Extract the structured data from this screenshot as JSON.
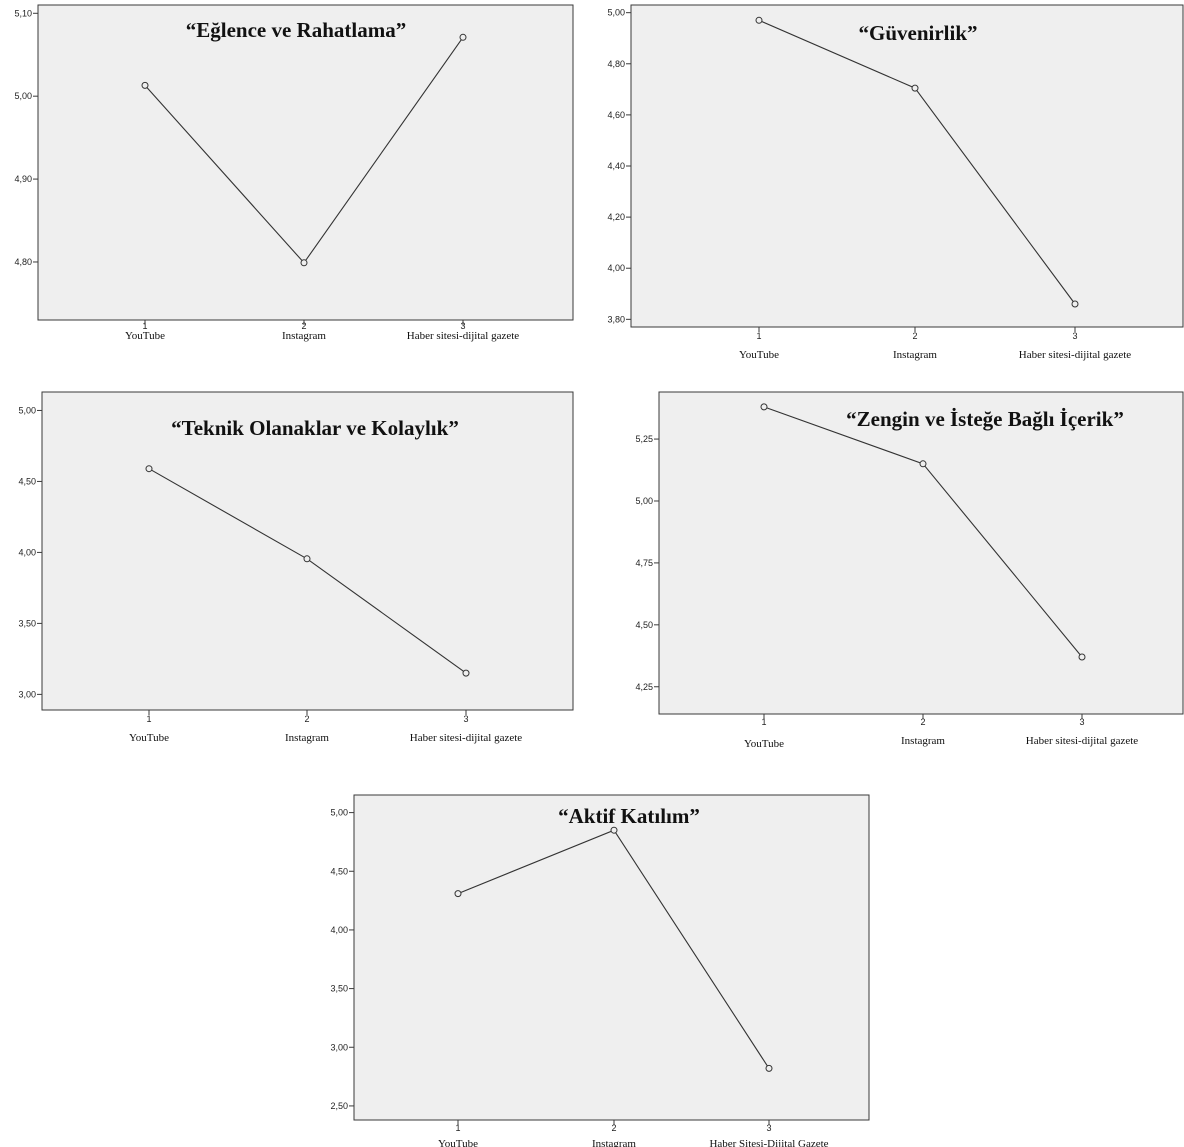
{
  "chart_data": [
    {
      "type": "line",
      "title": "“Eğlence ve Rahatlama”",
      "categories": [
        "YouTube",
        "Instagram",
        "Haber sitesi-dijital gazete"
      ],
      "x_ticks": [
        "1",
        "2",
        "3"
      ],
      "yticks": [
        "4,80",
        "4,90",
        "5,00",
        "5,10"
      ],
      "ylim": [
        4.73,
        5.11
      ],
      "values": [
        5.013,
        4.799,
        5.071
      ],
      "grid": false
    },
    {
      "type": "line",
      "title": "“Güvenirlik”",
      "categories": [
        "YouTube",
        "Instagram",
        "Haber sitesi-dijital gazete"
      ],
      "x_ticks": [
        "1",
        "2",
        "3"
      ],
      "yticks": [
        "3,80",
        "4,00",
        "4,20",
        "4,40",
        "4,60",
        "4,80",
        "5,00"
      ],
      "ylim": [
        3.77,
        5.03
      ],
      "values": [
        4.97,
        4.705,
        3.86
      ],
      "grid": false
    },
    {
      "type": "line",
      "title": "“Teknik Olanaklar ve Kolaylık”",
      "categories": [
        "YouTube",
        "Instagram",
        "Haber sitesi-dijital gazete"
      ],
      "x_ticks": [
        "1",
        "2",
        "3"
      ],
      "yticks": [
        "3,00",
        "3,50",
        "4,00",
        "4,50",
        "5,00"
      ],
      "ylim": [
        2.89,
        5.13
      ],
      "values": [
        4.59,
        3.955,
        3.15
      ],
      "grid": false
    },
    {
      "type": "line",
      "title": "“Zengin ve İsteğe Bağlı İçerik”",
      "categories": [
        "YouTube",
        "Instagram",
        "Haber sitesi-dijital gazete"
      ],
      "x_ticks": [
        "1",
        "2",
        "3"
      ],
      "yticks": [
        "4,25",
        "4,50",
        "4,75",
        "5,00",
        "5,25"
      ],
      "ylim": [
        4.14,
        5.44
      ],
      "values": [
        5.38,
        5.15,
        4.37
      ],
      "grid": false
    },
    {
      "type": "line",
      "title": "“Aktif Katılım”",
      "categories": [
        "YouTube",
        "Instagram",
        "Haber Sitesi-Dijital Gazete"
      ],
      "x_ticks": [
        "1",
        "2",
        "3"
      ],
      "yticks": [
        "2,50",
        "3,00",
        "3,50",
        "4,00",
        "4,50",
        "5,00"
      ],
      "ylim": [
        2.38,
        5.15
      ],
      "values": [
        4.31,
        4.85,
        2.82
      ],
      "grid": false
    }
  ]
}
